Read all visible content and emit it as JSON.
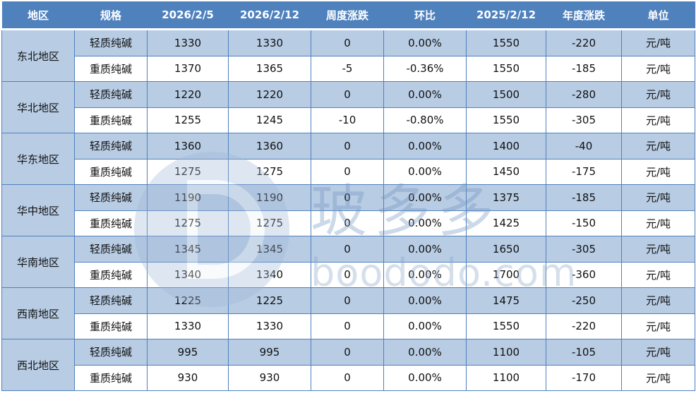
{
  "headers": [
    "地区",
    "规格",
    "2026/2/5",
    "2026/2/12",
    "周度涨跌",
    "环比",
    "2025/2/12",
    "年度涨跌",
    "单位"
  ],
  "regions": [
    {
      "name": "东北地区",
      "rows": [
        [
          "轻质纯碱",
          "1330",
          "1330",
          "0",
          "0.00%",
          "1550",
          "-220",
          "元/吨"
        ],
        [
          "重质纯碱",
          "1370",
          "1365",
          "-5",
          "-0.36%",
          "1550",
          "-185",
          "元/吨"
        ]
      ]
    },
    {
      "name": "华北地区",
      "rows": [
        [
          "轻质纯碱",
          "1220",
          "1220",
          "0",
          "0.00%",
          "1500",
          "-280",
          "元/吨"
        ],
        [
          "重质纯碱",
          "1255",
          "1245",
          "-10",
          "-0.80%",
          "1550",
          "-305",
          "元/吨"
        ]
      ]
    },
    {
      "name": "华东地区",
      "rows": [
        [
          "轻质纯碱",
          "1360",
          "1360",
          "0",
          "0.00%",
          "1400",
          "-40",
          "元/吨"
        ],
        [
          "重质纯碱",
          "1275",
          "1275",
          "0",
          "0.00%",
          "1450",
          "-175",
          "元/吨"
        ]
      ]
    },
    {
      "name": "华中地区",
      "rows": [
        [
          "轻质纯碱",
          "1190",
          "1190",
          "0",
          "0.00%",
          "1375",
          "-185",
          "元/吨"
        ],
        [
          "重质纯碱",
          "1275",
          "1275",
          "0",
          "0.00%",
          "1425",
          "-150",
          "元/吨"
        ]
      ]
    },
    {
      "name": "华南地区",
      "rows": [
        [
          "轻质纯碱",
          "1345",
          "1345",
          "0",
          "0.00%",
          "1650",
          "-305",
          "元/吨"
        ],
        [
          "重质纯碱",
          "1340",
          "1340",
          "0",
          "0.00%",
          "1700",
          "-360",
          "元/吨"
        ]
      ]
    },
    {
      "name": "西南地区",
      "rows": [
        [
          "轻质纯碱",
          "1225",
          "1225",
          "0",
          "0.00%",
          "1475",
          "-250",
          "元/吨"
        ],
        [
          "重质纯碱",
          "1330",
          "1330",
          "0",
          "0.00%",
          "1550",
          "-220",
          "元/吨"
        ]
      ]
    },
    {
      "name": "西北地区",
      "rows": [
        [
          "轻质纯碱",
          "995",
          "995",
          "0",
          "0.00%",
          "1100",
          "-105",
          "元/吨"
        ],
        [
          "重质纯碱",
          "930",
          "930",
          "0",
          "0.00%",
          "1100",
          "-170",
          "元/吨"
        ]
      ]
    }
  ],
  "watermark": {
    "cn": "玻多多",
    "url": "boododo.com"
  },
  "colors": {
    "header": "#4F81BD",
    "light_row": "#B8CCE4",
    "border": "#4F81BD"
  }
}
